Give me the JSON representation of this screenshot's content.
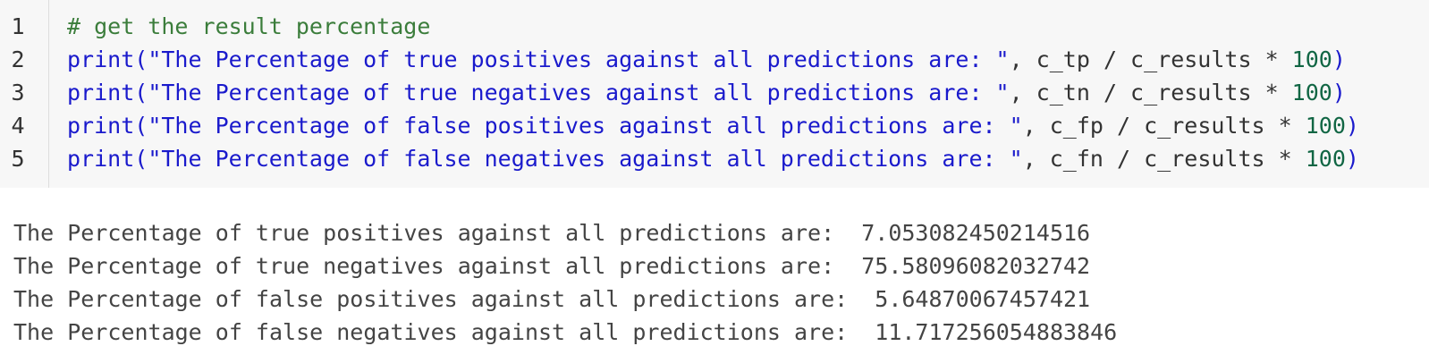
{
  "code": {
    "lines": [
      {
        "number": "1",
        "tokens": [
          {
            "text": "# get the result percentage",
            "kind": "comment"
          }
        ]
      },
      {
        "number": "2",
        "tokens": [
          {
            "text": "print(",
            "kind": "func"
          },
          {
            "text": "\"The Percentage of true positives against all predictions are: \"",
            "kind": "string"
          },
          {
            "text": ", c_tp / c_results * ",
            "kind": "plain"
          },
          {
            "text": "100",
            "kind": "number"
          },
          {
            "text": ")",
            "kind": "func"
          }
        ]
      },
      {
        "number": "3",
        "tokens": [
          {
            "text": "print(",
            "kind": "func"
          },
          {
            "text": "\"The Percentage of true negatives against all predictions are: \"",
            "kind": "string"
          },
          {
            "text": ", c_tn / c_results * ",
            "kind": "plain"
          },
          {
            "text": "100",
            "kind": "number"
          },
          {
            "text": ")",
            "kind": "func"
          }
        ]
      },
      {
        "number": "4",
        "tokens": [
          {
            "text": "print(",
            "kind": "func"
          },
          {
            "text": "\"The Percentage of false positives against all predictions are: \"",
            "kind": "string"
          },
          {
            "text": ", c_fp / c_results * ",
            "kind": "plain"
          },
          {
            "text": "100",
            "kind": "number"
          },
          {
            "text": ")",
            "kind": "func"
          }
        ]
      },
      {
        "number": "5",
        "tokens": [
          {
            "text": "print(",
            "kind": "func"
          },
          {
            "text": "\"The Percentage of false negatives against all predictions are: \"",
            "kind": "string"
          },
          {
            "text": ", c_fn / c_results * ",
            "kind": "plain"
          },
          {
            "text": "100",
            "kind": "number"
          },
          {
            "text": ")",
            "kind": "func"
          }
        ]
      }
    ]
  },
  "output": {
    "lines": [
      "The Percentage of true positives against all predictions are:  7.053082450214516",
      "The Percentage of true negatives against all predictions are:  75.58096082032742",
      "The Percentage of false positives against all predictions are:  5.64870067457421",
      "The Percentage of false negatives against all predictions are:  11.717256054883846"
    ]
  }
}
